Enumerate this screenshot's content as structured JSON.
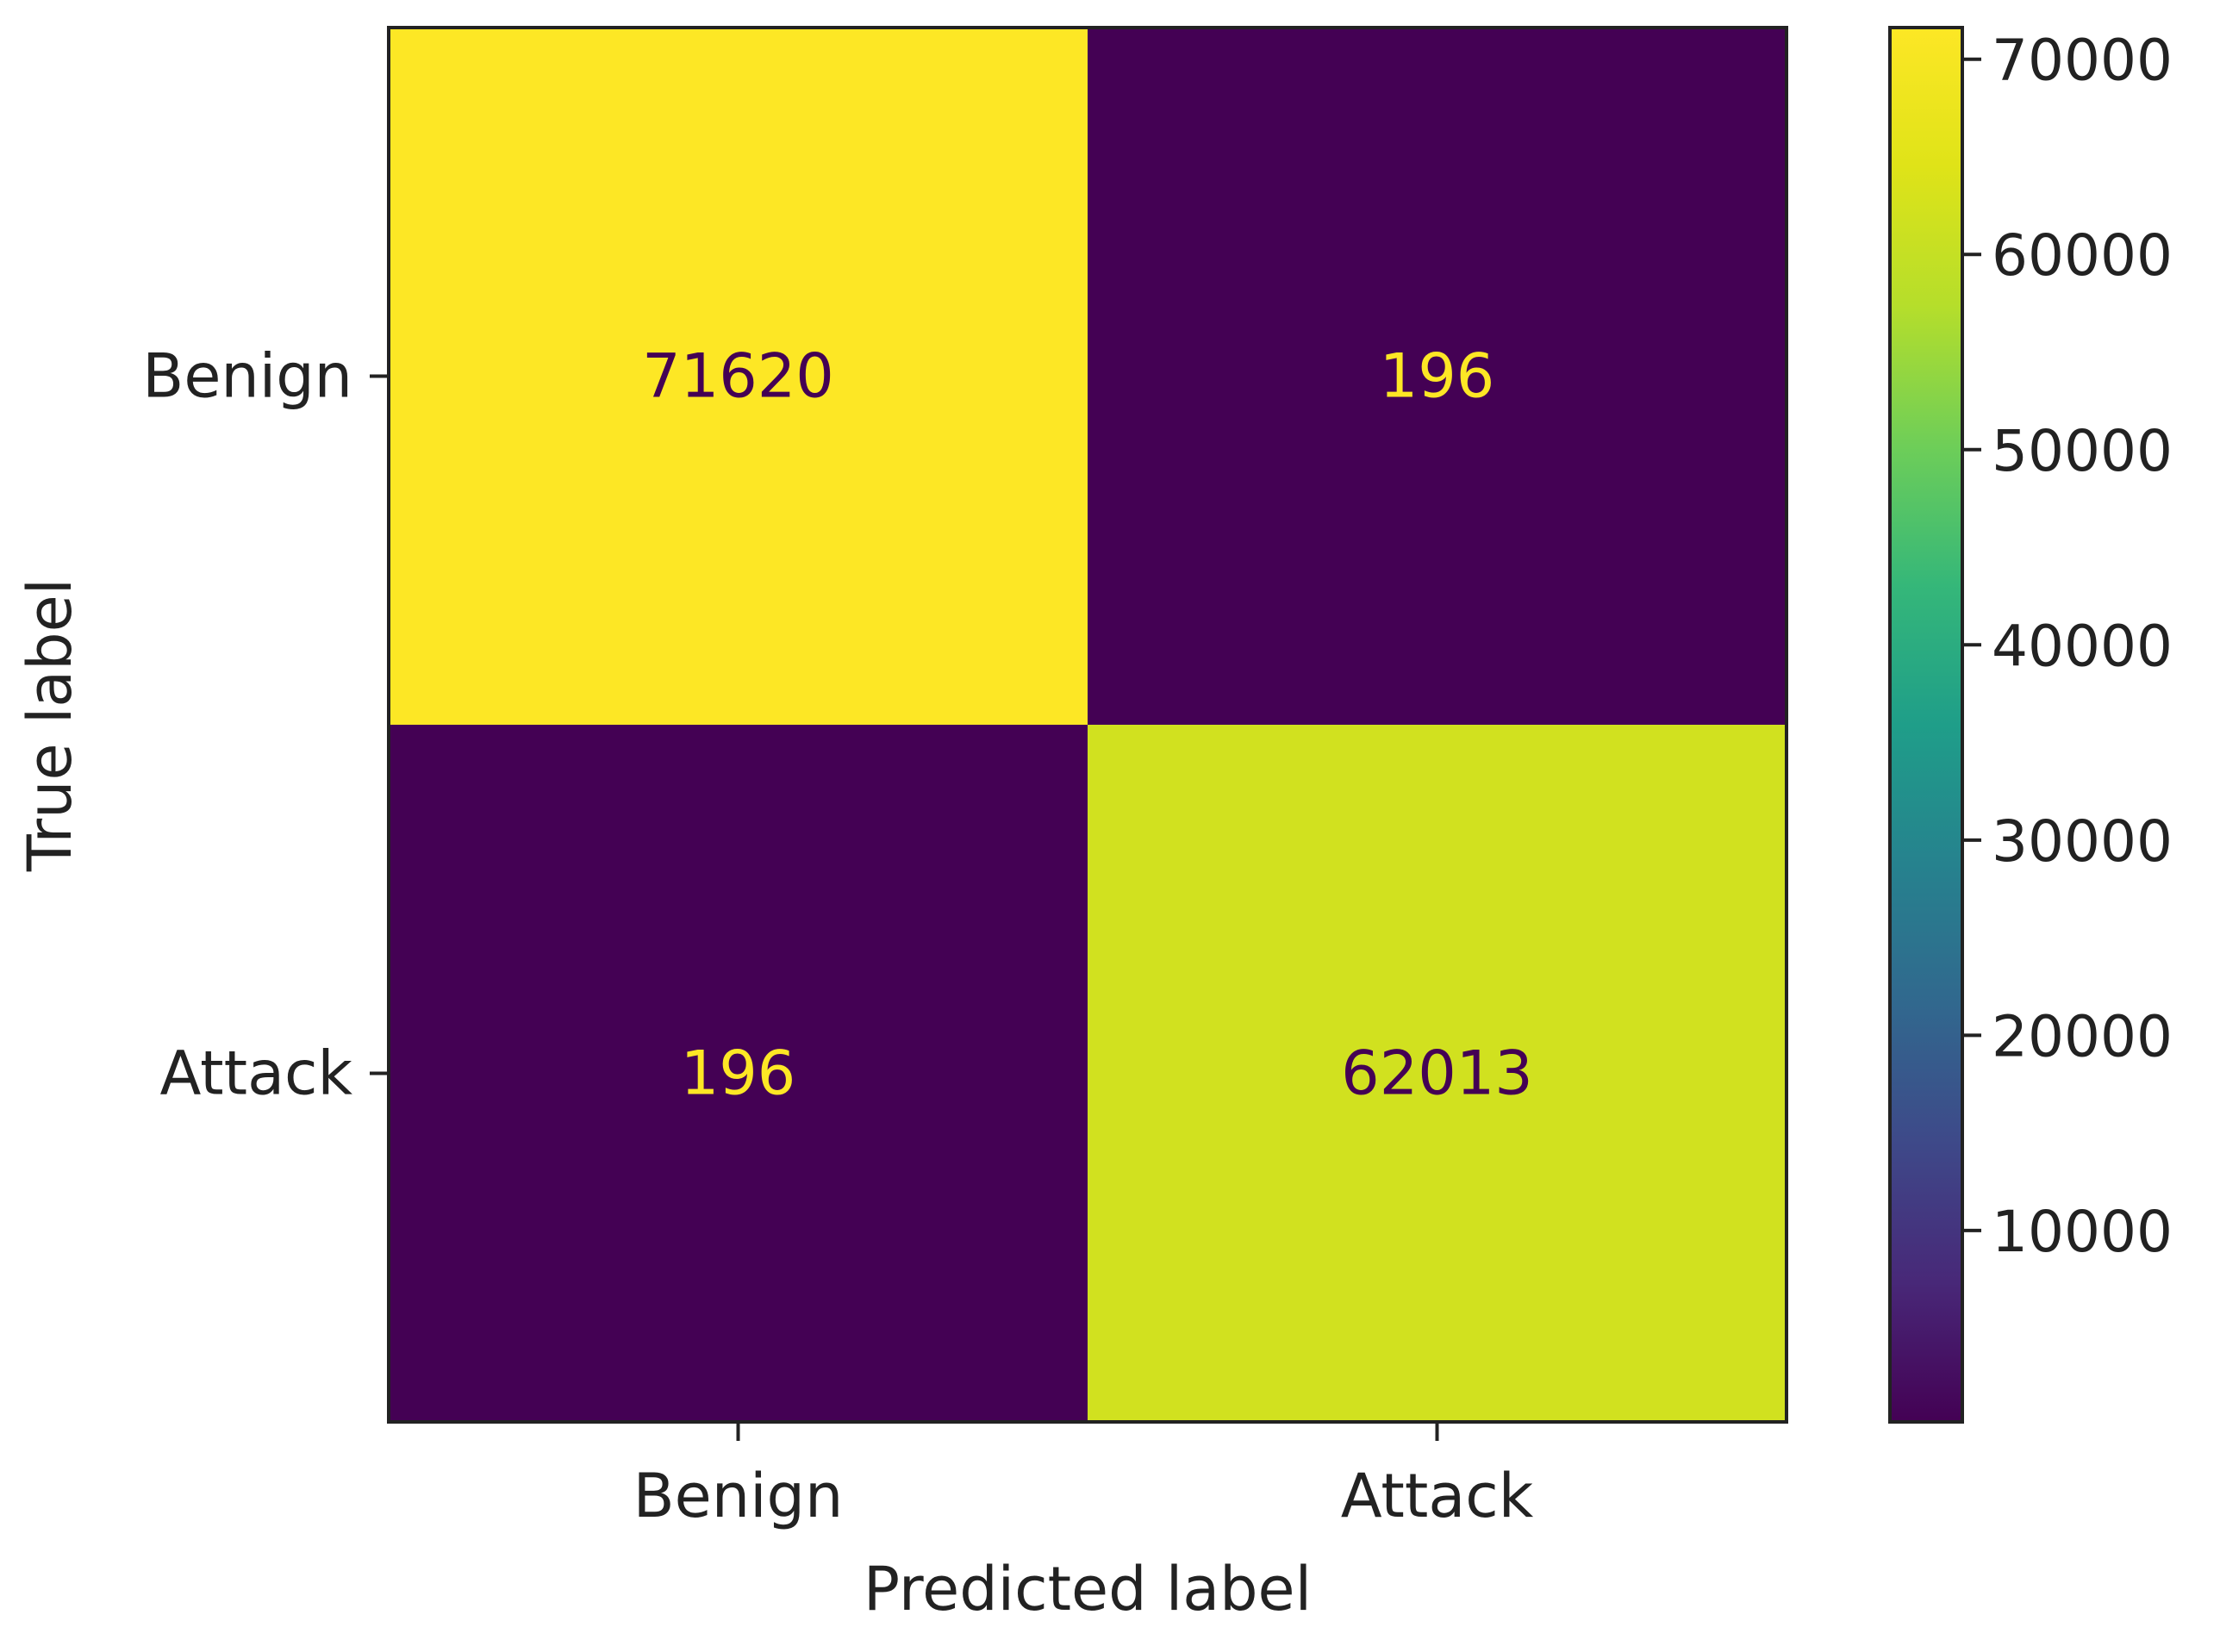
{
  "chart_data": {
    "type": "heatmap",
    "title": "",
    "xlabel": "Predicted label",
    "ylabel": "True label",
    "x_categories": [
      "Benign",
      "Attack"
    ],
    "y_categories": [
      "Benign",
      "Attack"
    ],
    "values": [
      [
        71620,
        196
      ],
      [
        196,
        62013
      ]
    ],
    "cell_labels": [
      [
        "71620",
        "196"
      ],
      [
        "196",
        "62013"
      ]
    ],
    "colormap": "viridis",
    "colorbar": {
      "range": [
        196,
        71620
      ],
      "ticks": [
        10000,
        20000,
        30000,
        40000,
        50000,
        60000,
        70000
      ],
      "tick_labels": [
        "10000",
        "20000",
        "30000",
        "40000",
        "50000",
        "60000",
        "70000"
      ]
    },
    "colors": {
      "high": "#fde725",
      "low": "#440154",
      "text_on_dark": "#fde725",
      "text_on_light": "#440154"
    }
  }
}
